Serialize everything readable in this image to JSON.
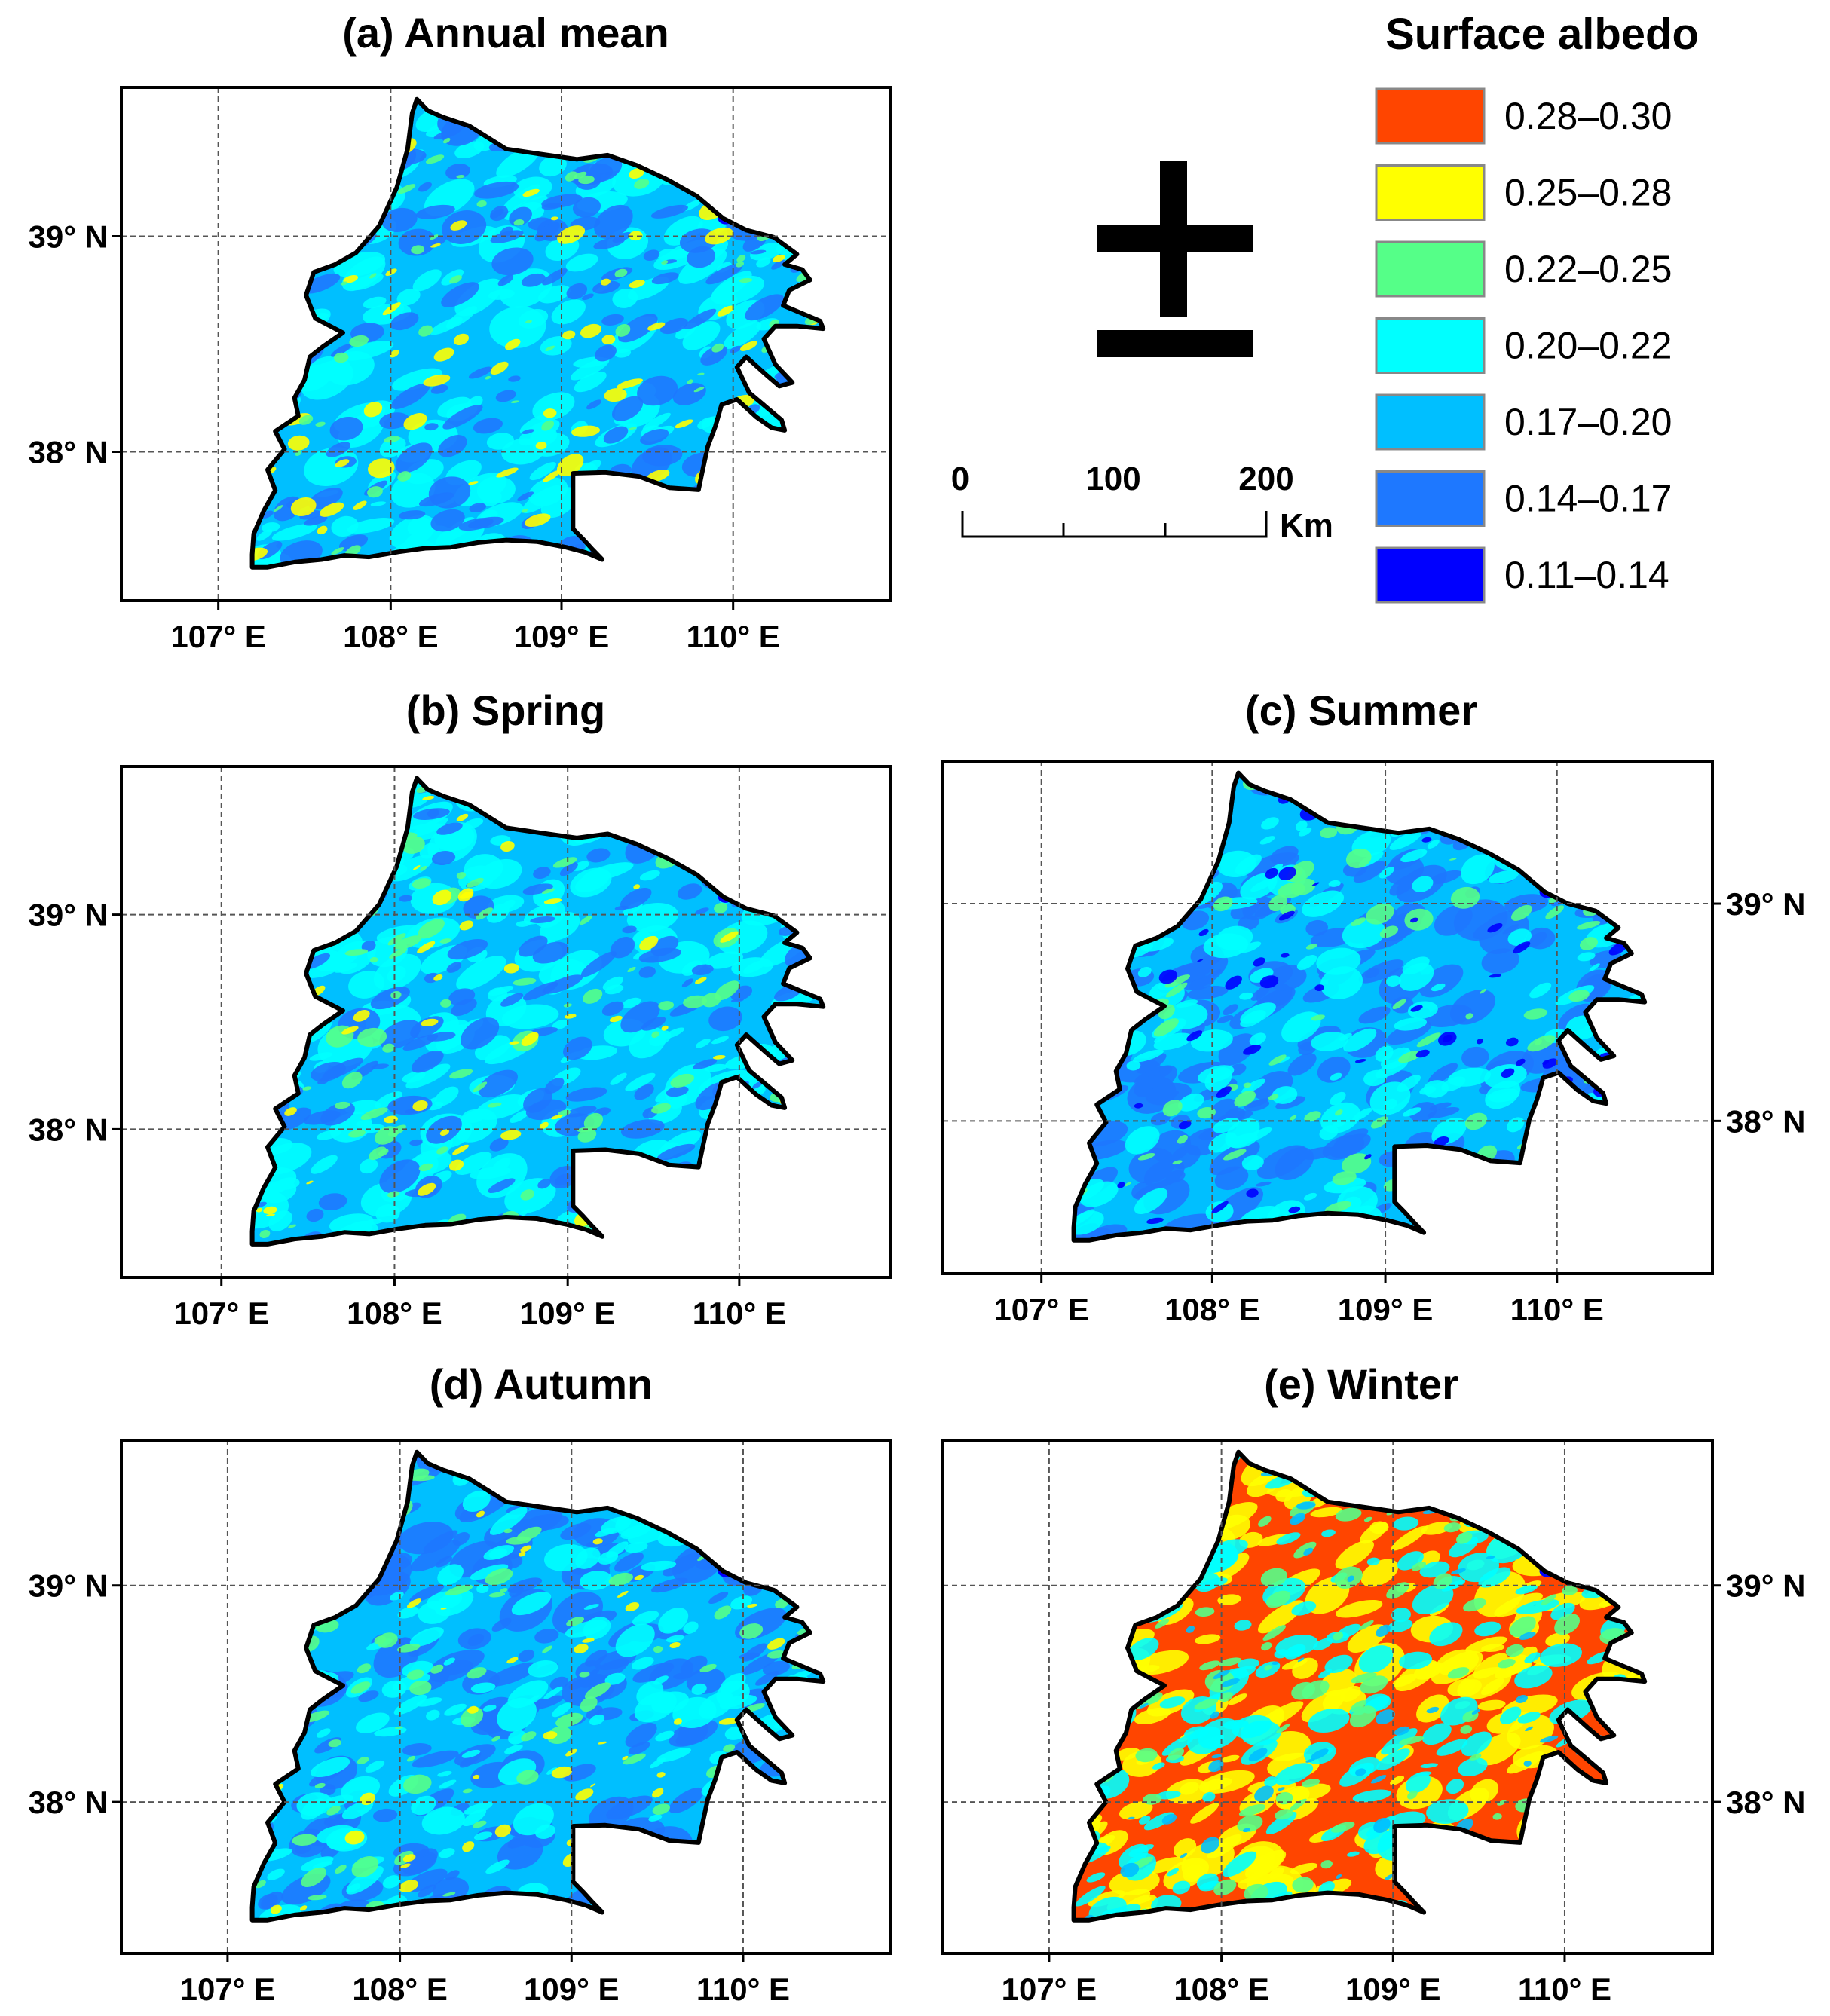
{
  "figure": {
    "panels": [
      {
        "id": "a",
        "title": "(a) Annual mean",
        "lon_labels": [
          "107° E",
          "108° E",
          "109° E",
          "110° E"
        ],
        "lat_labels": [
          "39° N",
          "38° N"
        ],
        "lat_side": "left",
        "dominant_classes": [
          "0.17–0.20",
          "0.20–0.22",
          "0.14–0.17"
        ],
        "accent_classes": [
          "0.25–0.28",
          "0.22–0.25"
        ]
      },
      {
        "id": "b",
        "title": "(b) Spring",
        "lon_labels": [
          "107° E",
          "108° E",
          "109° E",
          "110° E"
        ],
        "lat_labels": [
          "39° N",
          "38° N"
        ],
        "lat_side": "left",
        "dominant_classes": [
          "0.17–0.20",
          "0.20–0.22",
          "0.14–0.17"
        ],
        "accent_classes": [
          "0.22–0.25",
          "0.25–0.28"
        ]
      },
      {
        "id": "c",
        "title": "(c) Summer",
        "lon_labels": [
          "107° E",
          "108° E",
          "109° E",
          "110° E"
        ],
        "lat_labels": [
          "39° N",
          "38° N"
        ],
        "lat_side": "right",
        "dominant_classes": [
          "0.17–0.20",
          "0.14–0.17",
          "0.20–0.22"
        ],
        "accent_classes": [
          "0.22–0.25",
          "0.11–0.14"
        ]
      },
      {
        "id": "d",
        "title": "(d) Autumn",
        "lon_labels": [
          "107° E",
          "108° E",
          "109° E",
          "110° E"
        ],
        "lat_labels": [
          "39° N",
          "38° N"
        ],
        "lat_side": "left",
        "dominant_classes": [
          "0.17–0.20",
          "0.14–0.17",
          "0.20–0.22"
        ],
        "accent_classes": [
          "0.22–0.25",
          "0.25–0.28"
        ]
      },
      {
        "id": "e",
        "title": "(e) Winter",
        "lon_labels": [
          "107° E",
          "108° E",
          "109° E",
          "110° E"
        ],
        "lat_labels": [
          "39° N",
          "38° N"
        ],
        "lat_side": "right",
        "dominant_classes": [
          "0.28–0.30",
          "0.25–0.28",
          "0.20–0.22"
        ],
        "accent_classes": [
          "0.22–0.25",
          "0.17–0.20"
        ]
      }
    ],
    "legend": {
      "title": "Surface albedo",
      "classes": [
        {
          "label": "0.28–0.30",
          "color": "#ff4500"
        },
        {
          "label": "0.25–0.28",
          "color": "#ffff00"
        },
        {
          "label": "0.22–0.25",
          "color": "#55ff88"
        },
        {
          "label": "0.20–0.22",
          "color": "#00ffff"
        },
        {
          "label": "0.17–0.20",
          "color": "#00bfff"
        },
        {
          "label": "0.14–0.17",
          "color": "#1e78ff"
        },
        {
          "label": "0.11–0.14",
          "color": "#0000ff"
        }
      ]
    },
    "scale_bar": {
      "labels": [
        "0",
        "100",
        "200"
      ],
      "unit": "Km"
    },
    "north_arrow": {
      "icon": "north-arrow-icon"
    }
  }
}
